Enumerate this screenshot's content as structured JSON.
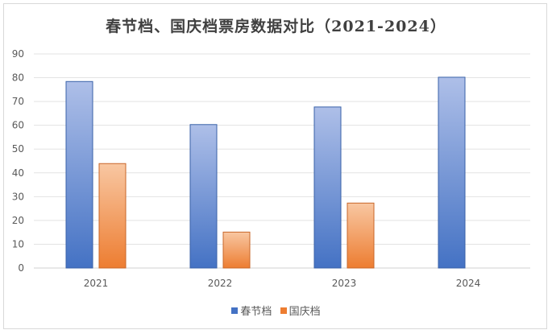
{
  "chart_data": {
    "type": "bar",
    "title": "春节档、国庆档票房数据对比（2021-2024）",
    "categories": [
      "2021",
      "2022",
      "2023",
      "2024"
    ],
    "series": [
      {
        "name": "春节档",
        "values": [
          78.4,
          60.3,
          67.7,
          80.2
        ],
        "color": "#4472c4"
      },
      {
        "name": "国庆档",
        "values": [
          43.9,
          15.1,
          27.3,
          null
        ],
        "color": "#ed7d31"
      }
    ],
    "ylim": [
      0,
      90
    ],
    "yticks": [
      "0",
      "10",
      "20",
      "30",
      "40",
      "50",
      "60",
      "70",
      "80",
      "90"
    ],
    "grid": true,
    "legend": "bottom"
  }
}
